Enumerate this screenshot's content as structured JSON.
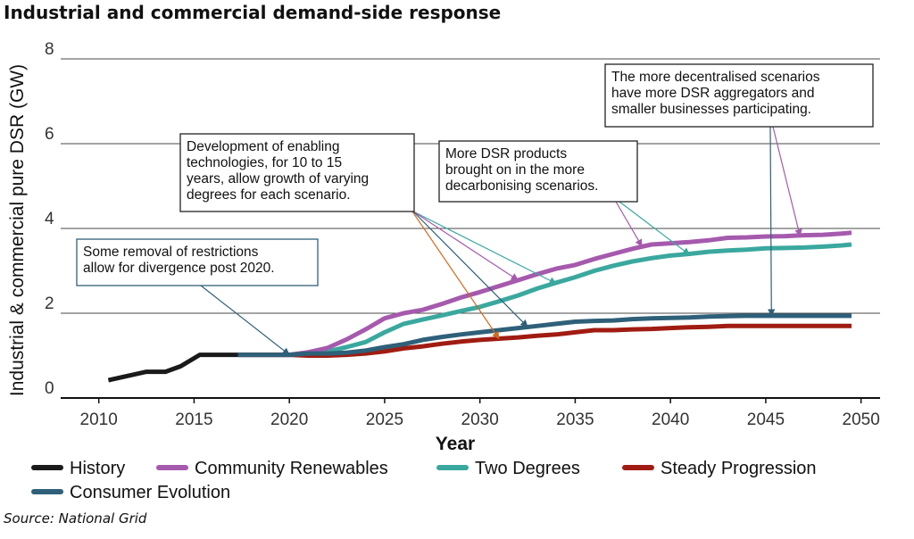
{
  "header": {
    "title": "Industrial and commercial demand-side response"
  },
  "footer": {
    "source": "Source: National Grid"
  },
  "colors": {
    "history": "#1a1a1a",
    "community_renewables": "#a55aad",
    "two_degrees": "#3aa89e",
    "steady_progression": "#a01c12",
    "consumer_evolution": "#2f6079"
  },
  "chart_data": {
    "type": "line",
    "title": "",
    "xlabel": "Year",
    "ylabel": "Industrial & commercial pure DSR (GW)",
    "xlim": [
      2008,
      2051
    ],
    "ylim": [
      0,
      8
    ],
    "xticks": [
      2010,
      2015,
      2020,
      2025,
      2030,
      2035,
      2040,
      2045,
      2050
    ],
    "yticks": [
      0,
      2,
      4,
      6,
      8
    ],
    "grid": "horizontal",
    "legend_position": "bottom",
    "series": [
      {
        "key": "history",
        "name": "History",
        "x": [
          2010.5,
          2011.5,
          2012.5,
          2013.5,
          2014.3,
          2015.3,
          2016.3,
          2017.3
        ],
        "y": [
          0.42,
          0.52,
          0.62,
          0.62,
          0.75,
          1.02,
          1.02,
          1.02
        ]
      },
      {
        "key": "community_renewables",
        "name": "Community Renewables",
        "x": [
          2017.3,
          2020,
          2021,
          2022,
          2023,
          2024,
          2025,
          2026,
          2027,
          2028,
          2029,
          2030,
          2031,
          2032,
          2033,
          2034,
          2035,
          2036,
          2037,
          2038,
          2039,
          2040,
          2041,
          2042,
          2043,
          2044,
          2045,
          2046,
          2047,
          2048,
          2049,
          2049.5
        ],
        "y": [
          1.02,
          1.02,
          1.08,
          1.18,
          1.38,
          1.62,
          1.88,
          2.0,
          2.08,
          2.22,
          2.37,
          2.5,
          2.64,
          2.78,
          2.92,
          3.05,
          3.14,
          3.28,
          3.4,
          3.52,
          3.62,
          3.65,
          3.68,
          3.72,
          3.78,
          3.79,
          3.81,
          3.82,
          3.84,
          3.85,
          3.88,
          3.9
        ]
      },
      {
        "key": "two_degrees",
        "name": "Two Degrees",
        "x": [
          2017.3,
          2020,
          2021,
          2022,
          2023,
          2024,
          2025,
          2026,
          2027,
          2028,
          2029,
          2030,
          2031,
          2032,
          2033,
          2034,
          2035,
          2036,
          2037,
          2038,
          2039,
          2040,
          2041,
          2042,
          2043,
          2044,
          2045,
          2046,
          2047,
          2048,
          2049,
          2049.5
        ],
        "y": [
          1.02,
          1.02,
          1.05,
          1.1,
          1.2,
          1.32,
          1.55,
          1.75,
          1.85,
          1.95,
          2.05,
          2.15,
          2.28,
          2.42,
          2.58,
          2.72,
          2.85,
          3.0,
          3.12,
          3.22,
          3.3,
          3.36,
          3.4,
          3.45,
          3.48,
          3.5,
          3.53,
          3.54,
          3.55,
          3.57,
          3.6,
          3.62
        ]
      },
      {
        "key": "steady_progression",
        "name": "Steady Progression",
        "x": [
          2017.3,
          2020,
          2021,
          2022,
          2023,
          2024,
          2025,
          2026,
          2027,
          2028,
          2029,
          2030,
          2031,
          2032,
          2033,
          2034,
          2035,
          2036,
          2037,
          2038,
          2039,
          2040,
          2041,
          2042,
          2043,
          2044,
          2045,
          2046,
          2047,
          2048,
          2049,
          2049.5
        ],
        "y": [
          1.02,
          1.02,
          1.0,
          1.0,
          1.02,
          1.05,
          1.1,
          1.17,
          1.22,
          1.28,
          1.33,
          1.37,
          1.4,
          1.43,
          1.47,
          1.5,
          1.55,
          1.6,
          1.6,
          1.62,
          1.63,
          1.65,
          1.67,
          1.68,
          1.7,
          1.7,
          1.7,
          1.7,
          1.7,
          1.7,
          1.7,
          1.7
        ]
      },
      {
        "key": "consumer_evolution",
        "name": "Consumer Evolution",
        "x": [
          2017.3,
          2020,
          2021,
          2022,
          2023,
          2024,
          2025,
          2026,
          2027,
          2028,
          2029,
          2030,
          2031,
          2032,
          2033,
          2034,
          2035,
          2036,
          2037,
          2038,
          2039,
          2040,
          2041,
          2042,
          2043,
          2044,
          2045,
          2046,
          2047,
          2048,
          2049,
          2049.5
        ],
        "y": [
          1.02,
          1.02,
          1.05,
          1.05,
          1.07,
          1.12,
          1.2,
          1.27,
          1.37,
          1.44,
          1.5,
          1.55,
          1.6,
          1.65,
          1.7,
          1.75,
          1.8,
          1.82,
          1.83,
          1.86,
          1.88,
          1.89,
          1.9,
          1.92,
          1.93,
          1.94,
          1.94,
          1.94,
          1.94,
          1.94,
          1.94,
          1.94
        ]
      }
    ],
    "legend_rows": [
      [
        "history",
        "community_renewables",
        "two_degrees",
        "steady_progression"
      ],
      [
        "consumer_evolution"
      ]
    ],
    "annotations": [
      {
        "id": "restrictions",
        "lines": [
          "Some removal of restrictions",
          "allow for divergence post 2020."
        ],
        "arrows": [
          {
            "color": "consumer_evolution",
            "to": [
              2020,
              1.02
            ]
          }
        ]
      },
      {
        "id": "enabling",
        "lines": [
          "Development of enabling",
          "technologies, for 10 to 15",
          "years, allow growth of varying",
          "degrees for each scenario."
        ],
        "arrows": [
          {
            "color": "two_degrees",
            "to": [
              2034,
              2.7
            ]
          },
          {
            "color": "community_renewables",
            "to": [
              2032,
              2.78
            ]
          },
          {
            "color": "consumer_evolution",
            "to": [
              2032.5,
              1.68
            ]
          },
          {
            "color": "steady_progression",
            "to": [
              2031,
              1.4
            ]
          }
        ]
      },
      {
        "id": "dsr_products",
        "lines": [
          "More DSR products",
          "brought on in the more",
          "decarbonising scenarios."
        ],
        "arrows": [
          {
            "color": "community_renewables",
            "to": [
              2038.5,
              3.58
            ]
          },
          {
            "color": "two_degrees",
            "to": [
              2041,
              3.38
            ]
          }
        ]
      },
      {
        "id": "decentralised",
        "lines": [
          "The more decentralised scenarios",
          "have more DSR aggregators and",
          "smaller businesses participating."
        ],
        "arrows": [
          {
            "color": "community_renewables",
            "to": [
              2046.8,
              3.82
            ]
          },
          {
            "color": "consumer_evolution",
            "to": [
              2045.3,
              1.94
            ]
          }
        ]
      }
    ]
  }
}
